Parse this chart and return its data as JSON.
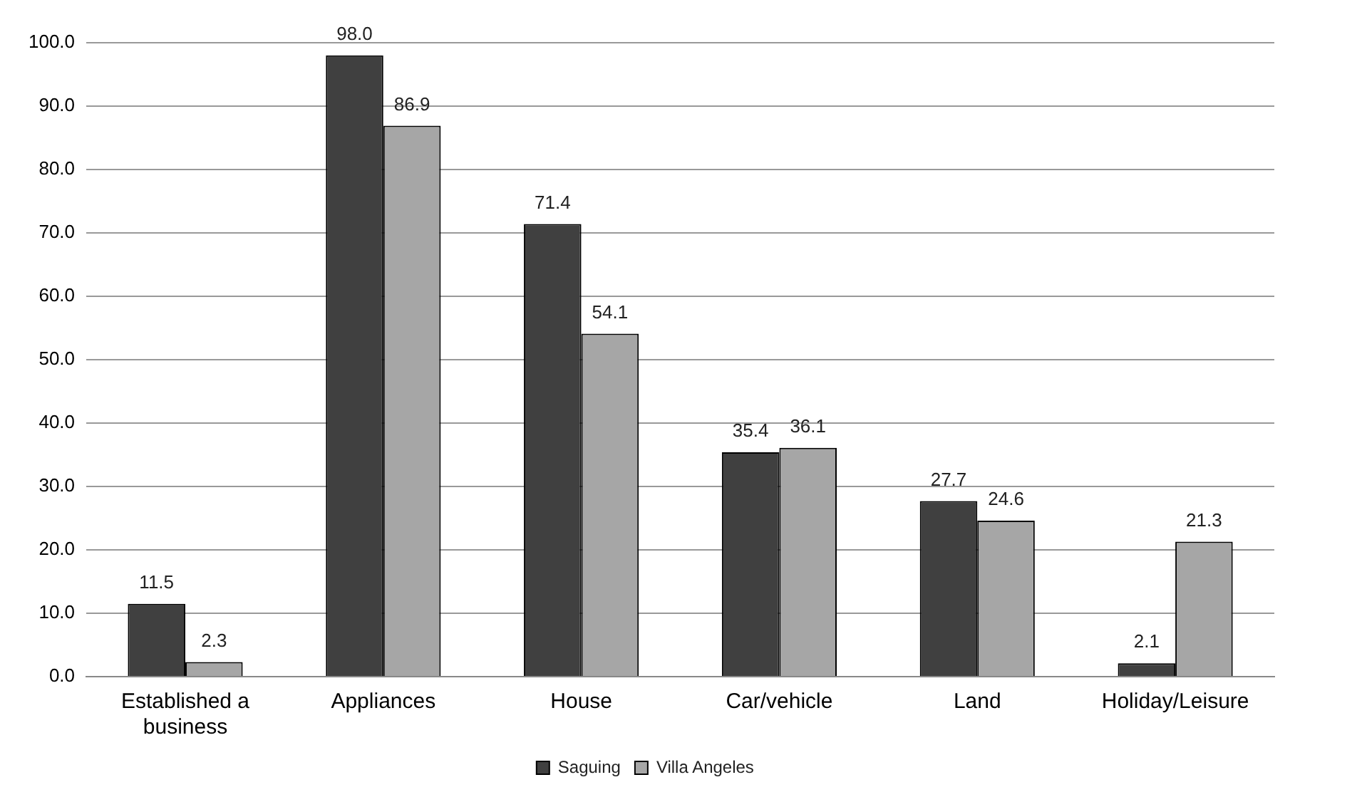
{
  "chart_data": {
    "type": "bar",
    "categories": [
      "Established a business",
      "Appliances",
      "House",
      "Car/vehicle",
      "Land",
      "Holiday/Leisure"
    ],
    "series": [
      {
        "name": "Saguing",
        "color": "#404040",
        "values": [
          11.5,
          98.0,
          71.4,
          35.4,
          27.7,
          2.1
        ],
        "value_labels": [
          "11.5",
          "98.0",
          "71.4",
          "35.4",
          "27.7",
          "2.1"
        ]
      },
      {
        "name": "Villa Angeles",
        "color": "#a6a6a6",
        "values": [
          2.3,
          86.9,
          54.1,
          36.1,
          24.6,
          21.3
        ],
        "value_labels": [
          "2.3",
          "86.9",
          "54.1",
          "36.1",
          "24.6",
          "21.3"
        ]
      }
    ],
    "ylim": [
      0,
      100
    ],
    "yticks": [
      {
        "value": 0,
        "label": "0.0"
      },
      {
        "value": 10,
        "label": "10.0"
      },
      {
        "value": 20,
        "label": "20.0"
      },
      {
        "value": 30,
        "label": "30.0"
      },
      {
        "value": 40,
        "label": "40.0"
      },
      {
        "value": 50,
        "label": "50.0"
      },
      {
        "value": 60,
        "label": "60.0"
      },
      {
        "value": 70,
        "label": "70.0"
      },
      {
        "value": 80,
        "label": "80.0"
      },
      {
        "value": 90,
        "label": "90.0"
      },
      {
        "value": 100,
        "label": "100.0"
      }
    ],
    "grid": "y",
    "legend": "bottom"
  }
}
